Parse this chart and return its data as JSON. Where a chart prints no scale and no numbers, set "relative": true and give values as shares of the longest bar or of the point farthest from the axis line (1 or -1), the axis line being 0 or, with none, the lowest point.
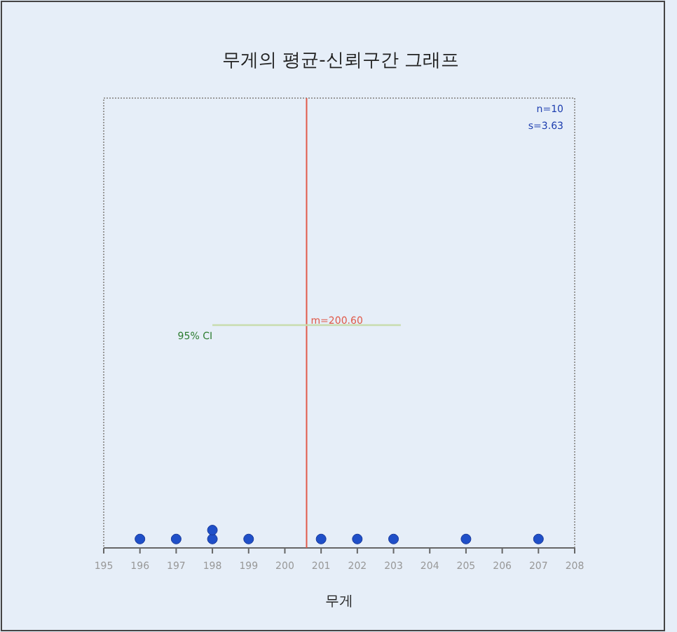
{
  "chart_data": {
    "type": "scatter",
    "title": "무게의 평균-신뢰구간 그래프",
    "xlabel": "무게",
    "relative": true,
    "xlim": [
      195,
      208
    ],
    "xticks": [
      195,
      196,
      197,
      198,
      199,
      200,
      201,
      202,
      203,
      204,
      205,
      206,
      207,
      208
    ],
    "marker": "circle",
    "series": [
      {
        "type": "scatter",
        "color": "#1f4fc8",
        "x": [
          196,
          197,
          198,
          198,
          199,
          201,
          202,
          203,
          205,
          207
        ],
        "values": [
          0.04,
          0.04,
          0.04,
          0.08,
          0.04,
          0.04,
          0.04,
          0.04,
          0.04,
          0.04
        ]
      },
      {
        "type": "line",
        "name": "95% CI",
        "color": "#c8dcae",
        "marker": "none",
        "x": [
          198.0,
          203.2
        ],
        "values": [
          1,
          1
        ]
      }
    ],
    "ref_lines": [
      {
        "axis": "x",
        "value": 200.6,
        "label": "m=200.60",
        "color": "#e05a4a"
      }
    ],
    "annotations": [
      "n=10",
      "s=3.63"
    ]
  }
}
